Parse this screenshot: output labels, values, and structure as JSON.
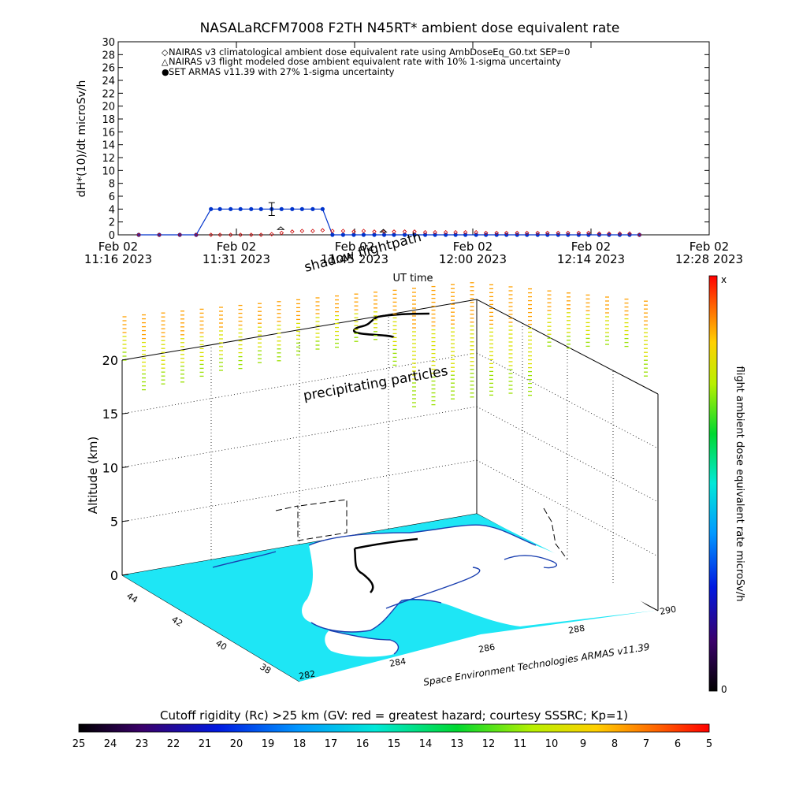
{
  "title": "NASALaRCFM7008  F2TH N45RT* ambient dose equivalent rate",
  "chart_data": [
    {
      "type": "line",
      "ylabel": "dH*(10)/dt microSv/h",
      "xlabel": "UT time",
      "ylim": [
        0,
        30
      ],
      "yticks": [
        0,
        2,
        4,
        6,
        8,
        10,
        12,
        14,
        16,
        18,
        20,
        22,
        24,
        26,
        28,
        30
      ],
      "xticks": [
        {
          "date": "Feb 02",
          "time": "11:16 2023",
          "minutes": 0
        },
        {
          "date": "Feb 02",
          "time": "11:31 2023",
          "minutes": 14.4
        },
        {
          "date": "Feb 02",
          "time": "11:45 2023",
          "minutes": 28.8
        },
        {
          "date": "Feb 02",
          "time": "12:00 2023",
          "minutes": 43.2
        },
        {
          "date": "Feb 02",
          "time": "12:14 2023",
          "minutes": 57.6
        },
        {
          "date": "Feb 02",
          "time": "12:28 2023",
          "minutes": 72
        }
      ],
      "legend": [
        {
          "marker": "◇",
          "color": "#cc0000",
          "label": "NAIRAS v3 climatological ambient dose equivalent rate using AmbDoseEq_G0.txt SEP=0"
        },
        {
          "marker": "△",
          "color": "#000000",
          "label": "NAIRAS v3 flight modeled dose ambient equivalent rate with 10% 1-sigma uncertainty"
        },
        {
          "marker": "●",
          "color": "#0033cc",
          "label": "SET ARMAS v11.39 with 27% 1-sigma uncertainty"
        }
      ],
      "series": [
        {
          "name": "SET ARMAS v11.39 with 27% 1-sigma uncertainty",
          "color": "#0033cc",
          "x": [
            2.5,
            5,
            7.5,
            9.5,
            11.3,
            12.4,
            13.7,
            14.9,
            16.2,
            17.4,
            18.7,
            19.9,
            21.2,
            22.4,
            23.7,
            24.9,
            26.1,
            27.4,
            28.7,
            29.9,
            31.2,
            32.4,
            33.6,
            34.9,
            36.1,
            37.4,
            38.6,
            39.9,
            41.1,
            42.3,
            43.6,
            44.8,
            46.1,
            47.3,
            48.6,
            49.8,
            51.1,
            52.3,
            53.6,
            54.8,
            56.1,
            57.3,
            58.6,
            59.8,
            61.1,
            62.3,
            63.5
          ],
          "y": [
            0,
            0,
            0,
            0,
            4,
            4,
            4,
            4,
            4,
            4,
            4,
            4,
            4,
            4,
            4,
            4,
            0,
            0,
            0,
            0,
            0,
            0,
            0,
            0,
            0,
            0,
            0,
            0,
            0,
            0,
            0,
            0,
            0,
            0,
            0,
            0,
            0,
            0,
            0,
            0,
            0,
            0,
            0,
            0,
            0,
            0,
            0
          ],
          "error_bar": {
            "x": 18.7,
            "y": 4,
            "err": 1
          }
        },
        {
          "name": "NAIRAS v3 climatological ambient dose equivalent rate using AmbDoseEq_G0.txt SEP=0",
          "color": "#cc0000",
          "x": [
            2.5,
            5,
            7.5,
            9.5,
            11.3,
            12.4,
            13.7,
            14.9,
            16.2,
            17.4,
            18.7,
            19.9,
            21.2,
            22.4,
            23.7,
            24.9,
            26.1,
            27.4,
            28.7,
            29.9,
            31.2,
            32.4,
            33.6,
            34.9,
            36.1,
            37.4,
            38.6,
            39.9,
            41.1,
            42.3,
            43.6,
            44.8,
            46.1,
            47.3,
            48.6,
            49.8,
            51.1,
            52.3,
            53.6,
            54.8,
            56.1,
            57.3,
            58.6,
            59.8,
            61.1,
            62.3,
            63.5
          ],
          "y": [
            0,
            0,
            0,
            0,
            0,
            0,
            0,
            0,
            0,
            0,
            0.1,
            0.3,
            0.5,
            0.6,
            0.6,
            0.7,
            0.6,
            0.6,
            0.5,
            0.6,
            0.5,
            0.5,
            0.5,
            0.5,
            0.5,
            0.4,
            0.4,
            0.4,
            0.4,
            0.4,
            0.4,
            0.3,
            0.3,
            0.3,
            0.3,
            0.3,
            0.3,
            0.3,
            0.3,
            0.3,
            0.3,
            0.3,
            0.2,
            0.2,
            0.2,
            0.2,
            0
          ]
        },
        {
          "name": "NAIRAS v3 flight modeled dose ambient equivalent rate with 10% 1-sigma uncertainty",
          "color": "#000000",
          "points": [
            {
              "x": 19.8,
              "y": 1.0
            },
            {
              "x": 32.3,
              "y": 0.6
            }
          ]
        }
      ]
    },
    {
      "type": "scatter",
      "zlabel": "Altitude (km)",
      "zticks": [
        0,
        5,
        10,
        15,
        20
      ],
      "lat_ticks": [
        "44",
        "42",
        "40",
        "38"
      ],
      "lon_ticks": [
        "282",
        "284",
        "286",
        "288",
        "290"
      ],
      "annotations": [
        "shadow flightpath",
        "precipitating particles"
      ],
      "credit": "Space Environment Technologies ARMAS v11.39",
      "colorbar_label": "flight ambient dose equivalent rate microSv/h",
      "colorbar_top": "x",
      "colorbar_bottom": "0"
    },
    {
      "type": "heatmap",
      "label": "Cutoff rigidity (Rc) >25 km (GV: red = greatest hazard; courtesy SSSRC; Kp=1)",
      "ticks": [
        "25",
        "24",
        "23",
        "22",
        "21",
        "20",
        "19",
        "18",
        "17",
        "16",
        "15",
        "14",
        "13",
        "12",
        "11",
        "10",
        "9",
        "8",
        "7",
        "6",
        "5"
      ]
    }
  ],
  "colors": {
    "armas": "#0033cc",
    "nairas_clim": "#cc0000",
    "ocean": "#1ee6f5",
    "land": "#ffffff",
    "coast": "#1a3fb0"
  }
}
